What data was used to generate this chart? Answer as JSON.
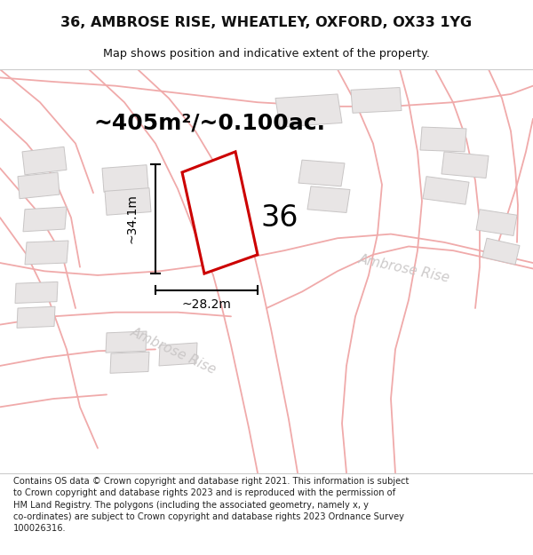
{
  "title": "36, AMBROSE RISE, WHEATLEY, OXFORD, OX33 1YG",
  "subtitle": "Map shows position and indicative extent of the property.",
  "area_text": "~405m²/~0.100ac.",
  "dim_width": "~28.2m",
  "dim_height": "~34.1m",
  "label_number": "36",
  "road_label_upper": "Ambrose Rise",
  "road_label_lower": "Ambrose Rise",
  "footer": "Contains OS data © Crown copyright and database right 2021. This information is subject to Crown copyright and database rights 2023 and is reproduced with the permission of HM Land Registry. The polygons (including the associated geometry, namely x, y co-ordinates) are subject to Crown copyright and database rights 2023 Ordnance Survey 100026316.",
  "map_bg": "#f5f3f3",
  "property_color": "#cc0000",
  "road_line_color": "#f0aaaa",
  "building_fill": "#e8e5e5",
  "building_edge": "#c8c5c5",
  "text_color": "#111111",
  "footer_color": "#222222",
  "road_label_color": "#c8c5c5",
  "header_bg": "#ffffff",
  "footer_bg": "#ffffff",
  "sep_color": "#cccccc"
}
